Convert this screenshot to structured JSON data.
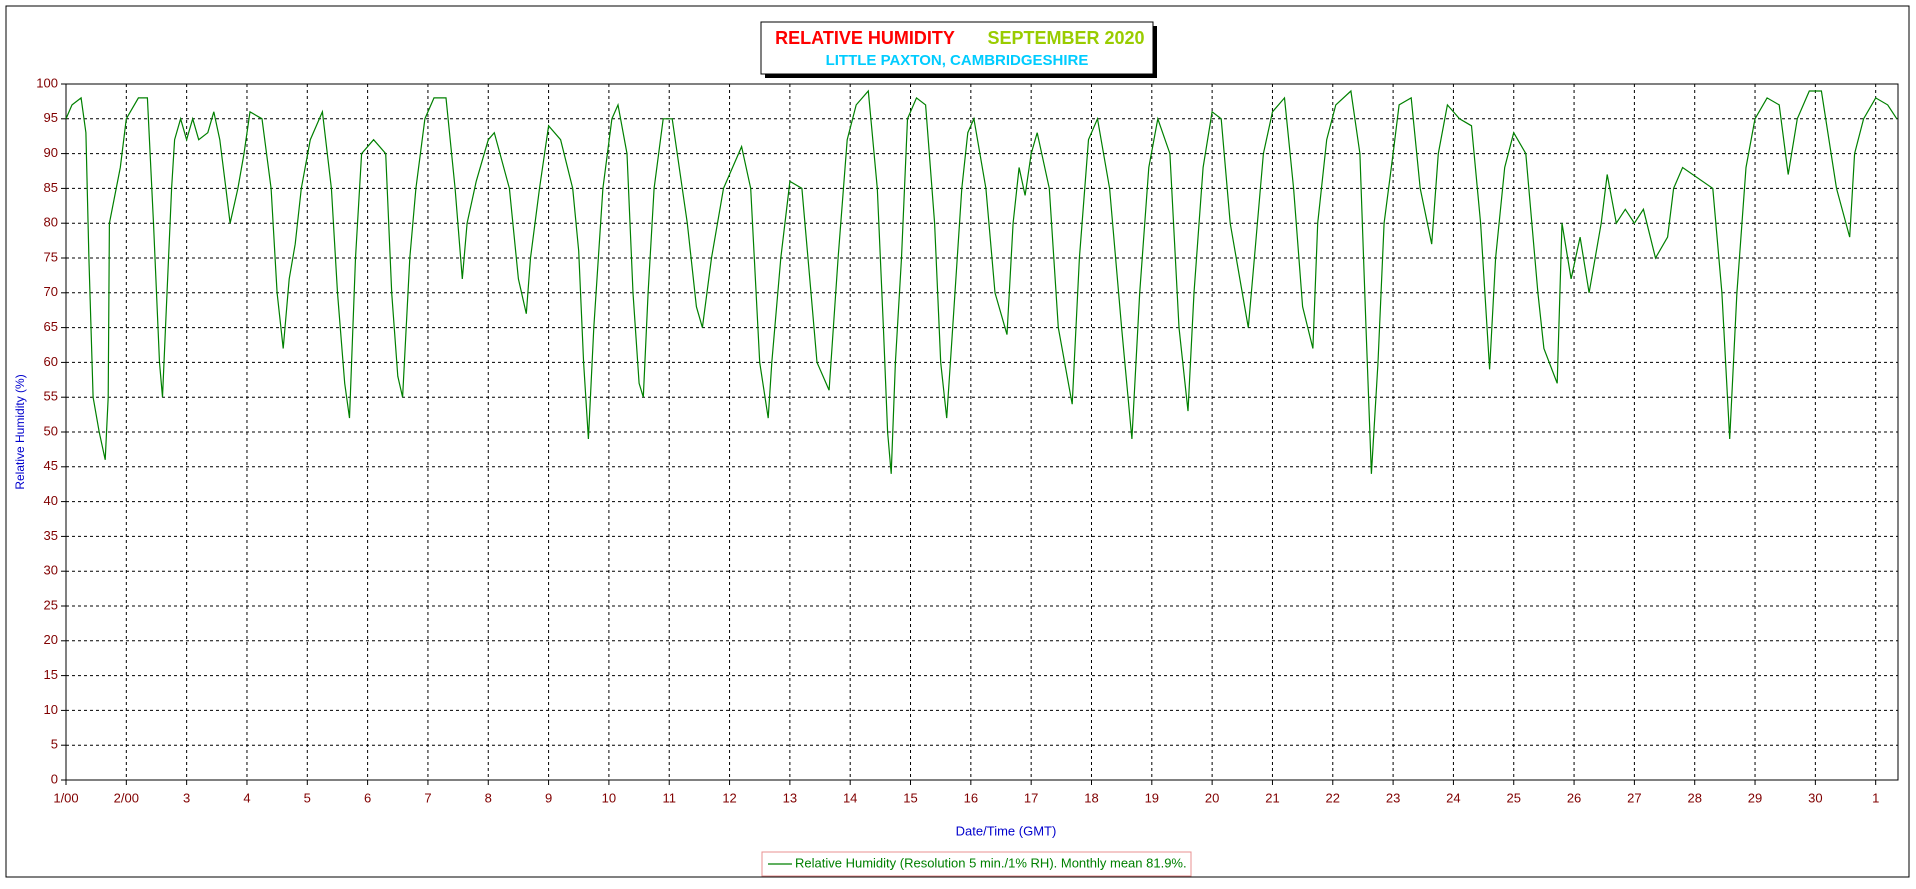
{
  "chart_data": {
    "type": "line",
    "title": "RELATIVE HUMIDITY",
    "title_period": "SEPTEMBER 2020",
    "subtitle": "LITTLE PAXTON, CAMBRIDGESHIRE",
    "x_label": "Date/Time (GMT)",
    "y_label": "Relative Humidity (%)",
    "xlim": [
      0,
      30.37
    ],
    "ylim": [
      0,
      100
    ],
    "xticks": [
      {
        "value": 0,
        "label": "1/00"
      },
      {
        "value": 1,
        "label": "2/00"
      },
      {
        "value": 2,
        "label": "3"
      },
      {
        "value": 3,
        "label": "4"
      },
      {
        "value": 4,
        "label": "5"
      },
      {
        "value": 5,
        "label": "6"
      },
      {
        "value": 6,
        "label": "7"
      },
      {
        "value": 7,
        "label": "8"
      },
      {
        "value": 8,
        "label": "9"
      },
      {
        "value": 9,
        "label": "10"
      },
      {
        "value": 10,
        "label": "11"
      },
      {
        "value": 11,
        "label": "12"
      },
      {
        "value": 12,
        "label": "13"
      },
      {
        "value": 13,
        "label": "14"
      },
      {
        "value": 14,
        "label": "15"
      },
      {
        "value": 15,
        "label": "16"
      },
      {
        "value": 16,
        "label": "17"
      },
      {
        "value": 17,
        "label": "18"
      },
      {
        "value": 18,
        "label": "19"
      },
      {
        "value": 19,
        "label": "20"
      },
      {
        "value": 20,
        "label": "21"
      },
      {
        "value": 21,
        "label": "22"
      },
      {
        "value": 22,
        "label": "23"
      },
      {
        "value": 23,
        "label": "24"
      },
      {
        "value": 24,
        "label": "25"
      },
      {
        "value": 25,
        "label": "26"
      },
      {
        "value": 26,
        "label": "27"
      },
      {
        "value": 27,
        "label": "28"
      },
      {
        "value": 28,
        "label": "29"
      },
      {
        "value": 29,
        "label": "30"
      },
      {
        "value": 30,
        "label": "1"
      }
    ],
    "yticks": [
      0,
      5,
      10,
      15,
      20,
      25,
      30,
      35,
      40,
      45,
      50,
      55,
      60,
      65,
      70,
      75,
      80,
      85,
      90,
      95,
      100
    ],
    "grid": true,
    "x": [
      0,
      0.1,
      0.25,
      0.33,
      0.38,
      0.45,
      0.55,
      0.65,
      0.7,
      0.72,
      0.9,
      1.0,
      1.2,
      1.35,
      1.45,
      1.55,
      1.6,
      1.65,
      1.75,
      1.8,
      1.9,
      2.0,
      2.1,
      2.2,
      2.35,
      2.45,
      2.55,
      2.65,
      2.72,
      2.85,
      2.95,
      3.05,
      3.25,
      3.4,
      3.5,
      3.6,
      3.7,
      3.8,
      3.9,
      4.05,
      4.25,
      4.4,
      4.5,
      4.62,
      4.7,
      4.8,
      4.9,
      5.1,
      5.3,
      5.4,
      5.5,
      5.58,
      5.7,
      5.8,
      5.95,
      6.1,
      6.3,
      6.45,
      6.57,
      6.65,
      6.8,
      7.0,
      7.1,
      7.35,
      7.5,
      7.63,
      7.7,
      7.85,
      8.0,
      8.2,
      8.4,
      8.5,
      8.58,
      8.66,
      8.75,
      8.9,
      9.05,
      9.15,
      9.3,
      9.4,
      9.5,
      9.57,
      9.65,
      9.75,
      9.9,
      10.05,
      10.3,
      10.45,
      10.55,
      10.7,
      10.9,
      11.2,
      11.35,
      11.5,
      11.64,
      11.7,
      11.85,
      12.0,
      12.2,
      12.35,
      12.45,
      12.65,
      12.8,
      12.95,
      13.1,
      13.3,
      13.45,
      13.55,
      13.62,
      13.68,
      13.75,
      13.85,
      13.95,
      14.1,
      14.25,
      14.4,
      14.5,
      14.6,
      14.7,
      14.85,
      14.95,
      15.05,
      15.25,
      15.4,
      15.6,
      15.7,
      15.8,
      15.9,
      16.0,
      16.1,
      16.3,
      16.45,
      16.68,
      16.8,
      16.95,
      17.1,
      17.3,
      17.5,
      17.67,
      17.8,
      17.95,
      18.1,
      18.3,
      18.45,
      18.6,
      18.7,
      18.85,
      19.0,
      19.15,
      19.3,
      19.6,
      19.7,
      19.85,
      20.0,
      20.2,
      20.35,
      20.5,
      20.67,
      20.75,
      20.9,
      21.05,
      21.3,
      21.45,
      21.55,
      21.64,
      21.75,
      21.85,
      22.0,
      22.1,
      22.3,
      22.45,
      22.64,
      22.75,
      22.9,
      23.1,
      23.3,
      23.45,
      23.6,
      23.7,
      23.85,
      24.0,
      24.2,
      24.4,
      24.5,
      24.72,
      24.8,
      24.95,
      25.1,
      25.25,
      25.45,
      25.55,
      25.7,
      25.85,
      26.0,
      26.15,
      26.35,
      26.55,
      26.65,
      26.8,
      27.3,
      27.45,
      27.58,
      27.7,
      27.85,
      28.0,
      28.2,
      28.4,
      28.55,
      28.7,
      28.9,
      29.1,
      29.35,
      29.57,
      29.65,
      29.8,
      30.0,
      30.2,
      30.35
    ],
    "series": [
      {
        "name": "Relative Humidity (Resolution 5 min./1% RH). Monthly mean 81.9%.",
        "color": "#008000",
        "values": [
          95,
          97,
          98,
          93,
          75,
          55,
          50,
          46,
          55,
          80,
          88,
          95,
          98,
          98,
          80,
          60,
          55,
          65,
          85,
          92,
          95,
          92,
          95,
          92,
          93,
          96,
          92,
          85,
          80,
          85,
          90,
          96,
          95,
          85,
          70,
          62,
          72,
          77,
          85,
          92,
          96,
          85,
          70,
          57,
          52,
          75,
          90,
          92,
          90,
          70,
          58,
          55,
          75,
          85,
          95,
          98,
          98,
          85,
          72,
          80,
          86,
          92,
          93,
          85,
          72,
          67,
          75,
          85,
          94,
          92,
          85,
          76,
          60,
          49,
          65,
          85,
          95,
          97,
          90,
          70,
          57,
          55,
          70,
          85,
          95,
          95,
          80,
          68,
          65,
          75,
          85,
          91,
          85,
          60,
          52,
          60,
          75,
          86,
          85,
          70,
          60,
          56,
          75,
          92,
          97,
          99,
          85,
          65,
          50,
          44,
          60,
          75,
          95,
          98,
          97,
          80,
          60,
          52,
          65,
          85,
          93,
          95,
          85,
          70,
          64,
          80,
          88,
          84,
          90,
          93,
          85,
          65,
          54,
          75,
          92,
          95,
          85,
          65,
          49,
          70,
          88,
          95,
          90,
          65,
          53,
          70,
          88,
          96,
          95,
          80,
          65,
          75,
          90,
          96,
          98,
          85,
          68,
          62,
          80,
          92,
          97,
          99,
          90,
          65,
          44,
          60,
          80,
          90,
          97,
          98,
          85,
          77,
          90,
          97,
          95,
          94,
          80,
          59,
          75,
          88,
          93,
          90,
          70,
          62,
          57,
          80,
          72,
          78,
          70,
          80,
          87,
          80,
          82,
          80,
          82,
          75,
          78,
          85,
          88,
          85,
          70,
          49,
          70,
          88,
          95,
          98,
          97,
          87,
          95,
          99,
          99,
          85,
          78,
          90,
          95,
          98,
          97,
          95
        ]
      }
    ]
  }
}
